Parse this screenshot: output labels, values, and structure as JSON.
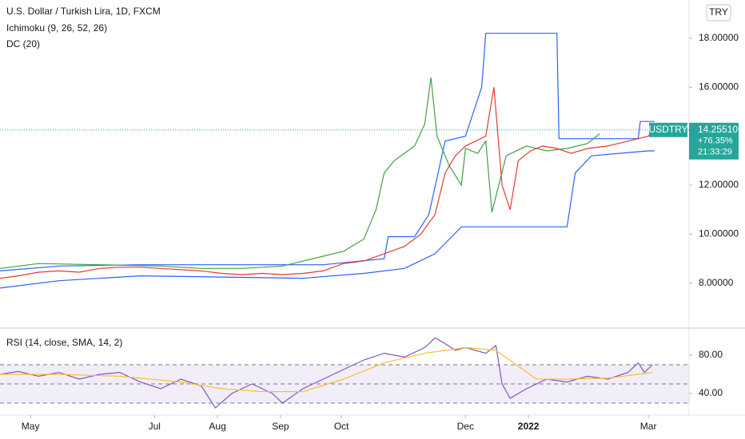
{
  "chart_data": [
    {
      "type": "line",
      "title": "U.S. Dollar / Turkish Lira, 1D, FXCM",
      "indicators": [
        "Ichimoku (9, 26, 52, 26)",
        "DC (20)"
      ],
      "currency": "TRY",
      "symbol": "USDTRY",
      "last_price": {
        "value": 14.2551,
        "label": "14.25510"
      },
      "change": "+76.35%",
      "countdown": "21:33:29",
      "xlim": [
        1,
        340
      ],
      "ylim": [
        6.2,
        19.56
      ],
      "yticks": [
        {
          "value": 8,
          "label": "8.00000"
        },
        {
          "value": 10,
          "label": "10.00000"
        },
        {
          "value": 12,
          "label": "12.00000"
        },
        {
          "value": 16,
          "label": "16.00000"
        },
        {
          "value": 18,
          "label": "18.00000"
        }
      ],
      "grid": false,
      "series": [
        {
          "color": "#2962ff",
          "x": [
            1,
            30,
            70,
            110,
            160,
            190,
            192,
            205,
            212,
            220,
            230,
            238,
            240,
            275,
            276,
            315,
            316,
            323
          ],
          "values": [
            8.5,
            8.7,
            8.75,
            8.75,
            8.75,
            9.0,
            9.9,
            9.9,
            10.8,
            13.8,
            14.0,
            16.0,
            18.2,
            18.2,
            13.9,
            13.9,
            14.6,
            14.6
          ]
        },
        {
          "color": "#2962ff",
          "x": [
            1,
            30,
            70,
            110,
            150,
            180,
            200,
            215,
            228,
            247,
            280,
            284,
            292,
            320,
            323
          ],
          "values": [
            7.8,
            8.1,
            8.3,
            8.25,
            8.2,
            8.4,
            8.6,
            9.2,
            10.3,
            10.3,
            10.3,
            12.5,
            13.2,
            13.4,
            13.4
          ]
        },
        {
          "color": "#43a047",
          "x": [
            1,
            20,
            50,
            80,
            100,
            120,
            140,
            150,
            160,
            170,
            180,
            186,
            190,
            195,
            205,
            210,
            213,
            216,
            222,
            228,
            230,
            236,
            240,
            243,
            250,
            260,
            270,
            280,
            290,
            296
          ],
          "values": [
            8.6,
            8.8,
            8.75,
            8.7,
            8.6,
            8.6,
            8.7,
            8.9,
            9.1,
            9.3,
            9.8,
            11.0,
            12.5,
            13.0,
            13.6,
            14.5,
            16.4,
            14.0,
            12.8,
            12.0,
            13.5,
            13.3,
            13.8,
            10.9,
            13.2,
            13.6,
            13.4,
            13.5,
            13.7,
            14.1
          ]
        },
        {
          "color": "#e53935",
          "x": [
            1,
            10,
            20,
            30,
            40,
            50,
            60,
            70,
            80,
            90,
            100,
            110,
            120,
            130,
            140,
            150,
            160,
            170,
            180,
            190,
            200,
            208,
            215,
            220,
            225,
            230,
            235,
            240,
            244,
            246,
            248,
            252,
            256,
            262,
            268,
            275,
            282,
            290,
            300,
            310,
            320,
            322
          ],
          "values": [
            8.2,
            8.3,
            8.45,
            8.5,
            8.45,
            8.6,
            8.65,
            8.65,
            8.6,
            8.55,
            8.5,
            8.4,
            8.35,
            8.4,
            8.35,
            8.4,
            8.5,
            8.8,
            8.9,
            9.2,
            9.5,
            10.0,
            10.8,
            12.5,
            13.2,
            13.6,
            13.8,
            14.0,
            16.0,
            14.0,
            12.0,
            11.0,
            13.0,
            13.4,
            13.6,
            13.5,
            13.3,
            13.5,
            13.6,
            13.8,
            14.0,
            14.2551
          ]
        }
      ]
    },
    {
      "type": "line",
      "title": "RSI (14, close, SMA, 14, 2)",
      "xlim": [
        1,
        340
      ],
      "ylim": [
        17.5,
        107.5
      ],
      "yticks": [
        {
          "value": 40,
          "label": "40.00"
        },
        {
          "value": 80,
          "label": "80.00"
        }
      ],
      "levels": [
        70,
        50,
        30
      ],
      "xticks": [
        {
          "value": 16,
          "label": "May"
        },
        {
          "value": 77,
          "label": "Jul"
        },
        {
          "value": 108,
          "label": "Aug"
        },
        {
          "value": 139,
          "label": "Sep"
        },
        {
          "value": 169,
          "label": "Oct"
        },
        {
          "value": 230,
          "label": "Dec"
        },
        {
          "value": 261,
          "label": "2022"
        },
        {
          "value": 320,
          "label": "Mar"
        }
      ],
      "series": [
        {
          "color": "#7e57c2",
          "x": [
            1,
            10,
            20,
            30,
            40,
            50,
            60,
            70,
            80,
            90,
            100,
            107,
            115,
            125,
            135,
            140,
            150,
            160,
            170,
            180,
            190,
            200,
            210,
            215,
            220,
            225,
            230,
            240,
            245,
            248,
            252,
            260,
            270,
            280,
            290,
            300,
            310,
            315,
            318,
            322
          ],
          "values": [
            60,
            63,
            58,
            62,
            55,
            60,
            62,
            52,
            45,
            55,
            48,
            25,
            40,
            50,
            40,
            30,
            45,
            55,
            65,
            75,
            82,
            78,
            88,
            98,
            92,
            85,
            88,
            82,
            90,
            50,
            35,
            45,
            55,
            52,
            58,
            55,
            62,
            72,
            62,
            70
          ]
        },
        {
          "color": "#fbc02d",
          "x": [
            1,
            30,
            60,
            90,
            110,
            130,
            150,
            170,
            190,
            210,
            230,
            245,
            255,
            265,
            280,
            300,
            322
          ],
          "values": [
            60,
            60,
            58,
            52,
            45,
            42,
            42,
            55,
            72,
            82,
            88,
            85,
            70,
            55,
            55,
            56,
            62
          ]
        }
      ]
    }
  ]
}
